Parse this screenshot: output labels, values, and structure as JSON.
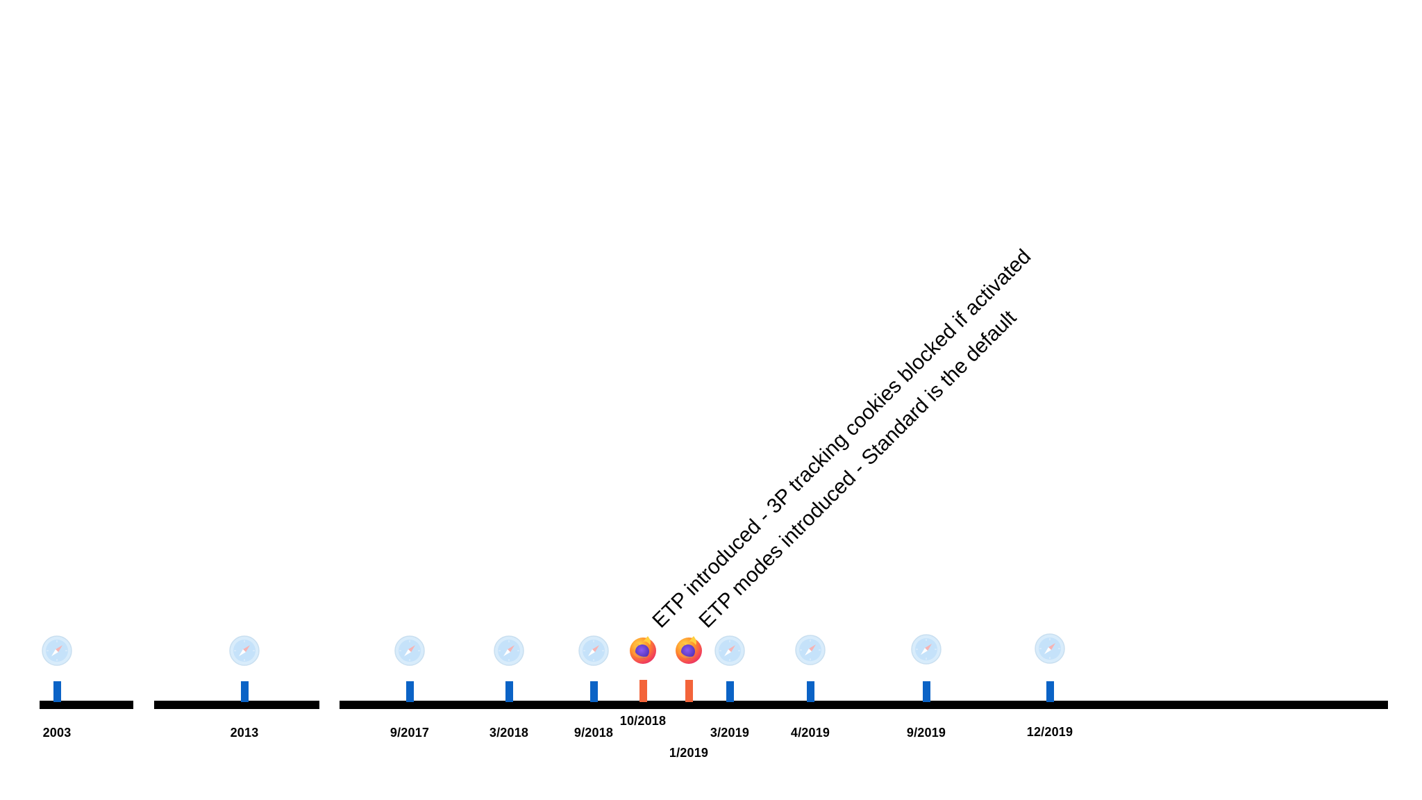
{
  "timeline": {
    "events": [
      {
        "date": "2003",
        "browser": "safari-icon"
      },
      {
        "date": "2013",
        "browser": "safari-icon"
      },
      {
        "date": "9/2017",
        "browser": "safari-icon"
      },
      {
        "date": "3/2018",
        "browser": "safari-icon"
      },
      {
        "date": "9/2018",
        "browser": "safari-icon"
      },
      {
        "date": "10/2018",
        "browser": "firefox-icon",
        "annotation": "ETP introduced - 3P tracking cookies blocked if activated"
      },
      {
        "date": "1/2019",
        "browser": "firefox-icon",
        "annotation": "ETP modes introduced - Standard is the default"
      },
      {
        "date": "3/2019",
        "browser": "safari-icon"
      },
      {
        "date": "4/2019",
        "browser": "safari-icon"
      },
      {
        "date": "9/2019",
        "browser": "safari-icon"
      },
      {
        "date": "12/2019",
        "browser": "safari-icon"
      }
    ]
  },
  "colors": {
    "safari_tick": "#0b63c6",
    "firefox_tick": "#f3643a",
    "axis": "#000000"
  }
}
